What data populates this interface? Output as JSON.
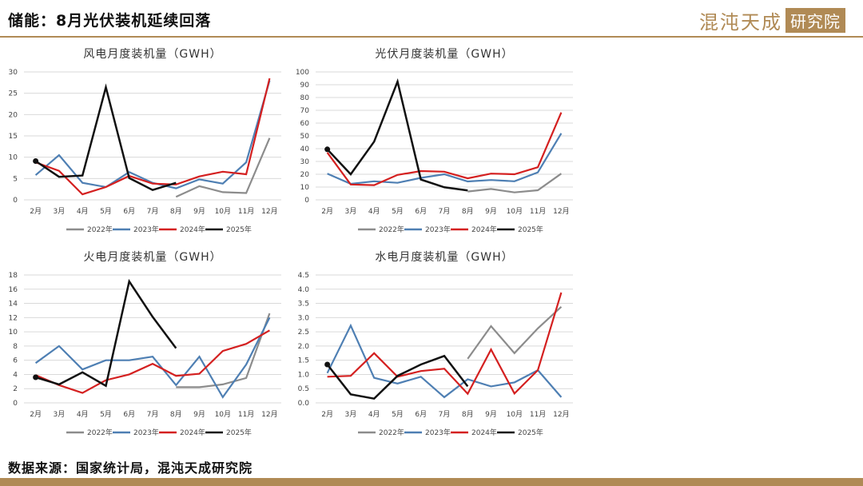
{
  "header": {
    "title": "储能：8月光伏装机延续回落",
    "logo_text": "混沌天成",
    "logo_box": "研究院"
  },
  "footer": {
    "source": "数据来源：国家统计局，混沌天成研究院"
  },
  "colors": {
    "2022年": "#8c8c8c",
    "2023年": "#4e7fb3",
    "2024年": "#d42020",
    "2025年": "#111111",
    "accent": "#b08a55"
  },
  "chart_data": [
    {
      "type": "line",
      "title": "风电月度装机量（GWH）",
      "categories": [
        "2月",
        "3月",
        "4月",
        "5月",
        "6月",
        "7月",
        "8月",
        "9月",
        "10月",
        "11月",
        "12月"
      ],
      "ylim": [
        0,
        30
      ],
      "yticks": [
        "0",
        "5",
        "10",
        "15",
        "20",
        "25",
        "30"
      ],
      "grid": true,
      "legend_position": "bottom",
      "series": [
        {
          "name": "2022年",
          "values": [
            null,
            null,
            null,
            null,
            null,
            null,
            0.7,
            3.2,
            1.8,
            1.6,
            14.5
          ]
        },
        {
          "name": "2023年",
          "values": [
            5.8,
            10.5,
            4.0,
            3.0,
            6.5,
            4.0,
            2.7,
            4.8,
            3.8,
            8.8,
            28.0
          ]
        },
        {
          "name": "2024年",
          "values": [
            8.8,
            6.8,
            1.3,
            3.0,
            5.6,
            3.8,
            3.6,
            5.5,
            6.6,
            6.0,
            28.5
          ]
        },
        {
          "name": "2025年",
          "values": [
            9.1,
            5.4,
            5.7,
            26.4,
            5.1,
            2.3,
            4.0,
            null,
            null,
            null,
            null
          ]
        }
      ]
    },
    {
      "type": "line",
      "title": "光伏月度装机量（GWH）",
      "categories": [
        "2月",
        "3月",
        "4月",
        "5月",
        "6月",
        "7月",
        "8月",
        "9月",
        "10月",
        "11月",
        "12月"
      ],
      "ylim": [
        0,
        100
      ],
      "yticks": [
        "0",
        "10",
        "20",
        "30",
        "40",
        "50",
        "60",
        "70",
        "80",
        "90",
        "100"
      ],
      "grid": true,
      "legend_position": "bottom",
      "series": [
        {
          "name": "2022年",
          "values": [
            null,
            null,
            null,
            null,
            null,
            null,
            6.5,
            8.5,
            5.8,
            7.5,
            20.5
          ]
        },
        {
          "name": "2023年",
          "values": [
            20.5,
            12.5,
            14.5,
            13.3,
            17.2,
            20.0,
            14.4,
            15.5,
            14.5,
            21.5,
            52.0
          ]
        },
        {
          "name": "2024年",
          "values": [
            37.0,
            12.0,
            11.5,
            19.5,
            22.5,
            22.0,
            16.8,
            20.5,
            20.0,
            25.5,
            68.3
          ]
        },
        {
          "name": "2025年",
          "values": [
            39.5,
            20.0,
            45.5,
            92.5,
            15.9,
            9.8,
            7.4,
            null,
            null,
            null,
            null
          ]
        }
      ]
    },
    {
      "type": "line",
      "title": "火电月度装机量（GWH）",
      "categories": [
        "2月",
        "3月",
        "4月",
        "5月",
        "6月",
        "7月",
        "8月",
        "9月",
        "10月",
        "11月",
        "12月"
      ],
      "ylim": [
        0,
        18
      ],
      "yticks": [
        "0",
        "2",
        "4",
        "6",
        "8",
        "10",
        "12",
        "14",
        "16",
        "18"
      ],
      "grid": true,
      "legend_position": "bottom",
      "series": [
        {
          "name": "2022年",
          "values": [
            null,
            null,
            null,
            null,
            null,
            null,
            2.2,
            2.2,
            2.6,
            3.5,
            12.6
          ]
        },
        {
          "name": "2023年",
          "values": [
            5.6,
            8.0,
            4.7,
            6.0,
            6.0,
            6.5,
            2.5,
            6.5,
            0.8,
            5.4,
            12.0
          ]
        },
        {
          "name": "2024年",
          "values": [
            3.9,
            2.5,
            1.4,
            3.2,
            4.0,
            5.5,
            3.8,
            4.1,
            7.3,
            8.3,
            10.2
          ]
        },
        {
          "name": "2025年",
          "values": [
            3.6,
            2.6,
            4.3,
            2.4,
            17.1,
            12.1,
            7.7,
            null,
            null,
            null,
            null
          ]
        }
      ]
    },
    {
      "type": "line",
      "title": "水电月度装机量（GWH）",
      "categories": [
        "2月",
        "3月",
        "4月",
        "5月",
        "6月",
        "7月",
        "8月",
        "9月",
        "10月",
        "11月",
        "12月"
      ],
      "ylim": [
        0,
        4.5
      ],
      "yticks": [
        "0.0",
        "0.5",
        "1.0",
        "1.5",
        "2.0",
        "2.5",
        "3.0",
        "3.5",
        "4.0",
        "4.5"
      ],
      "grid": true,
      "legend_position": "bottom",
      "series": [
        {
          "name": "2022年",
          "values": [
            null,
            null,
            null,
            null,
            null,
            null,
            1.55,
            2.7,
            1.75,
            2.62,
            3.38
          ]
        },
        {
          "name": "2023年",
          "values": [
            1.05,
            2.72,
            0.88,
            0.68,
            0.92,
            0.2,
            0.83,
            0.58,
            0.72,
            1.15,
            0.2
          ]
        },
        {
          "name": "2024年",
          "values": [
            0.92,
            0.95,
            1.75,
            0.92,
            1.12,
            1.2,
            0.32,
            1.88,
            0.33,
            1.15,
            3.88
          ]
        },
        {
          "name": "2025年",
          "values": [
            1.35,
            0.3,
            0.15,
            0.95,
            1.35,
            1.65,
            0.58,
            null,
            null,
            null,
            null
          ]
        }
      ]
    }
  ]
}
